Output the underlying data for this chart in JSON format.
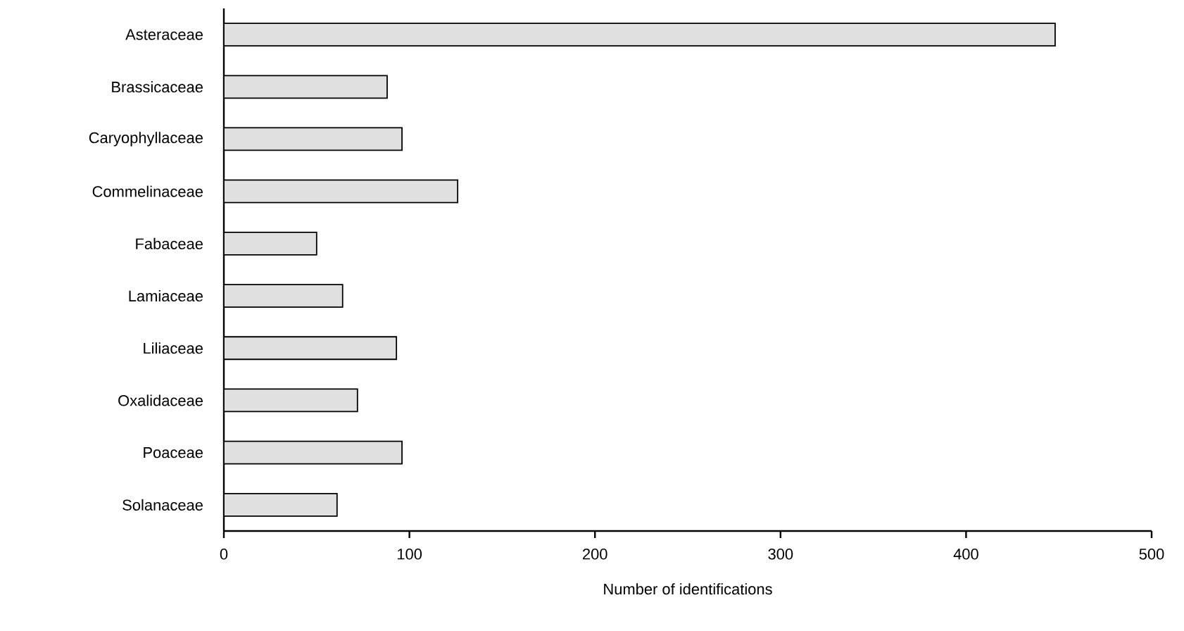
{
  "chart_data": {
    "type": "bar",
    "orientation": "horizontal",
    "xlabel": "Number of identifications",
    "categories": [
      "Asteraceae",
      "Brassicaceae",
      "Caryophyllaceae",
      "Commelinaceae",
      "Fabaceae",
      "Lamiaceae",
      "Liliaceae",
      "Oxalidaceae",
      "Poaceae",
      "Solanaceae"
    ],
    "values": [
      448,
      88,
      96,
      126,
      50,
      64,
      93,
      72,
      96,
      61
    ],
    "color": "#e0e0e0",
    "xlim": [
      0,
      500
    ],
    "xticks": [
      0,
      100,
      200,
      300,
      400,
      500
    ],
    "grid": false
  }
}
